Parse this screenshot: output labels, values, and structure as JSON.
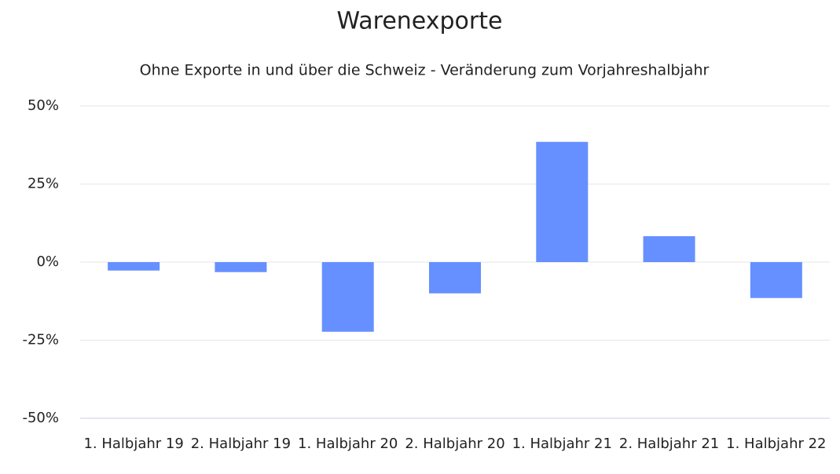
{
  "chart_data": {
    "type": "bar",
    "title": "Warenexporte",
    "subtitle": "Ohne Exporte in und über die Schweiz - Veränderung zum Vorjahreshalbjahr",
    "categories": [
      "1. Halbjahr 19",
      "2. Halbjahr 19",
      "1. Halbjahr 20",
      "2. Halbjahr 20",
      "1. Halbjahr 21",
      "2. Halbjahr 21",
      "1. Halbjahr 22"
    ],
    "values": [
      -2.7,
      -3.2,
      -22.3,
      -10,
      38.5,
      8.3,
      -11.5
    ],
    "color": "#6690ff",
    "ylim": [
      -50,
      50
    ],
    "yticks": [
      {
        "value": -50,
        "label": "-50%"
      },
      {
        "value": -25,
        "label": "-25%"
      },
      {
        "value": 0,
        "label": "0%"
      },
      {
        "value": 25,
        "label": "25%"
      },
      {
        "value": 50,
        "label": "50%"
      }
    ],
    "grid": true
  }
}
